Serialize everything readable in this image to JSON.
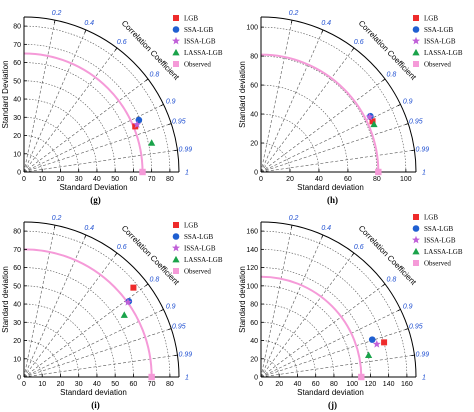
{
  "colors": {
    "LGB": "#ee2b2b",
    "SSA-LGB": "#1f5fd1",
    "ISSA-LGB": "#c060d8",
    "LASSA-LGB": "#1aa34a",
    "Observed": "#f59ad8",
    "ref_arc": "#f59ad8",
    "corr_label": "#1f4fd1"
  },
  "chart_data": [
    {
      "type": "taylor",
      "panel_label": "(g)",
      "xlabel": "Standard Deviation",
      "ylabel": "Standard Deviation",
      "corr_title": "Correlation Coefficient",
      "max": 85,
      "ticks": [
        0,
        10,
        20,
        30,
        40,
        50,
        60,
        70,
        80
      ],
      "tick_labels": [
        "0",
        "10",
        "20",
        "30",
        "40",
        "50",
        "60",
        "70",
        "80"
      ],
      "corr_ticks": [
        "0.2",
        "0.4",
        "0.6",
        "0.8",
        "0.9",
        "0.95",
        "0.99",
        "1"
      ],
      "observed_std": 65,
      "legend": [
        "LGB",
        "SSA-LGB",
        "ISSA-LGB",
        "LASSA-LGB",
        "Observed"
      ],
      "points": [
        {
          "name": "LGB",
          "marker": "square",
          "x": 61,
          "y": 25
        },
        {
          "name": "SSA-LGB",
          "marker": "circle",
          "x": 63,
          "y": 28.5
        },
        {
          "name": "ISSA-LGB",
          "marker": "star",
          "x": 62,
          "y": 26
        },
        {
          "name": "LASSA-LGB",
          "marker": "triangle",
          "x": 70,
          "y": 16
        },
        {
          "name": "Observed",
          "marker": "square",
          "x": 65,
          "y": 0
        }
      ]
    },
    {
      "type": "taylor",
      "panel_label": "(h)",
      "xlabel": "Standard deviation",
      "ylabel": "Standard deviation",
      "corr_title": "Correlation Coefficient",
      "max": 107,
      "ticks": [
        0,
        20,
        40,
        60,
        80,
        100
      ],
      "tick_labels": [
        "0",
        "20",
        "40",
        "60",
        "80",
        "100"
      ],
      "corr_ticks": [
        "0.2",
        "0.4",
        "0.6",
        "0.8",
        "0.9",
        "0.95",
        "0.99",
        "1"
      ],
      "observed_std": 81,
      "legend": [
        "LGB",
        "SSA-LGB",
        "ISSA-LGB",
        "LASSA-LGB",
        "Observed"
      ],
      "points": [
        {
          "name": "LGB",
          "marker": "square",
          "x": 77,
          "y": 35
        },
        {
          "name": "SSA-LGB",
          "marker": "circle",
          "x": 75.5,
          "y": 38.5
        },
        {
          "name": "ISSA-LGB",
          "marker": "star",
          "x": 75,
          "y": 38
        },
        {
          "name": "LASSA-LGB",
          "marker": "triangle",
          "x": 78,
          "y": 33
        },
        {
          "name": "Observed",
          "marker": "square",
          "x": 81,
          "y": 0
        }
      ]
    },
    {
      "type": "taylor",
      "panel_label": "(i)",
      "xlabel": "Standard deviation",
      "ylabel": "Standard deviation",
      "corr_title": "Correlation Coefficient",
      "max": 85,
      "ticks": [
        0,
        10,
        20,
        30,
        40,
        50,
        60,
        70,
        80
      ],
      "tick_labels": [
        "0",
        "10",
        "20",
        "30",
        "40",
        "50",
        "60",
        "70",
        "80"
      ],
      "corr_ticks": [
        "0.2",
        "0.4",
        "0.6",
        "0.8",
        "0.9",
        "0.95",
        "0.99",
        "1"
      ],
      "observed_std": 70,
      "legend": [
        "LGB",
        "SSA-LGB",
        "ISSA-LGB",
        "LASSA-LGB",
        "Observed"
      ],
      "points": [
        {
          "name": "LGB",
          "marker": "square",
          "x": 60,
          "y": 49
        },
        {
          "name": "SSA-LGB",
          "marker": "circle",
          "x": 57.5,
          "y": 41.5
        },
        {
          "name": "ISSA-LGB",
          "marker": "star",
          "x": 57,
          "y": 41
        },
        {
          "name": "LASSA-LGB",
          "marker": "triangle",
          "x": 55,
          "y": 34
        },
        {
          "name": "Observed",
          "marker": "square",
          "x": 70,
          "y": 0
        }
      ]
    },
    {
      "type": "taylor",
      "panel_label": "(j)",
      "xlabel": "Standard deviation",
      "ylabel": "Standard deviation",
      "corr_title": "Correlation Coefficient",
      "max": 170,
      "ticks": [
        0,
        20,
        40,
        60,
        80,
        100,
        120,
        140,
        160
      ],
      "tick_labels": [
        "0",
        "20",
        "40",
        "60",
        "80",
        "100",
        "120",
        "140",
        "160"
      ],
      "corr_ticks": [
        "0.2",
        "0.4",
        "0.6",
        "0.8",
        "0.9",
        "0.95",
        "0.99",
        "1"
      ],
      "observed_std": 110,
      "legend": [
        "LGB",
        "SSA-LGB",
        "ISSA-LGB",
        "LASSA-LGB",
        "Observed"
      ],
      "points": [
        {
          "name": "LGB",
          "marker": "square",
          "x": 135,
          "y": 38
        },
        {
          "name": "SSA-LGB",
          "marker": "circle",
          "x": 122,
          "y": 41
        },
        {
          "name": "ISSA-LGB",
          "marker": "star",
          "x": 127,
          "y": 36
        },
        {
          "name": "LASSA-LGB",
          "marker": "triangle",
          "x": 118,
          "y": 24
        },
        {
          "name": "Observed",
          "marker": "square",
          "x": 110,
          "y": 0
        }
      ]
    }
  ]
}
